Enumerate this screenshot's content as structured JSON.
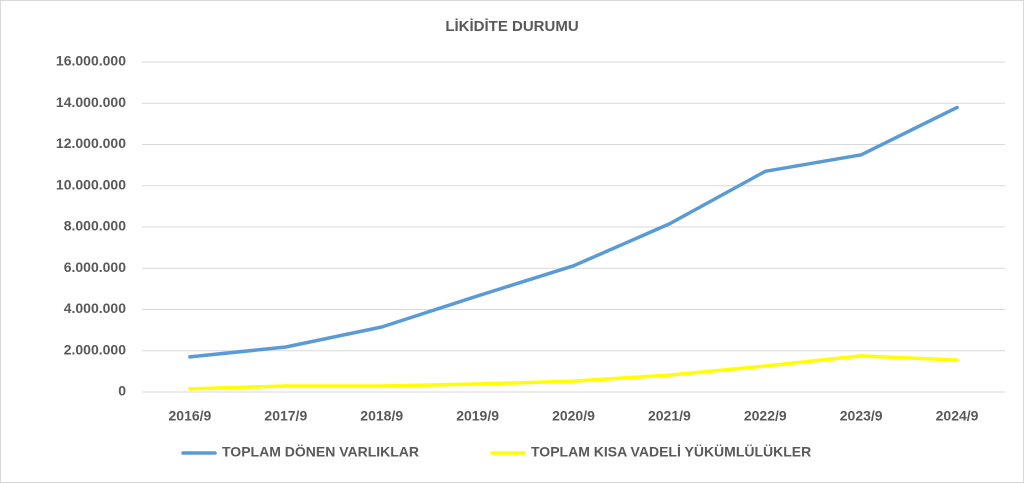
{
  "chart_data": {
    "type": "line",
    "title": "LİKİDİTE DURUMU",
    "categories": [
      "2016/9",
      "2017/9",
      "2018/9",
      "2019/9",
      "2020/9",
      "2021/9",
      "2022/9",
      "2023/9",
      "2024/9"
    ],
    "series": [
      {
        "name": "TOPLAM DÖNEN VARLIKLAR",
        "color": "#5b9bd5",
        "values": [
          1700000,
          2180000,
          3150000,
          4660000,
          6120000,
          8150000,
          10700000,
          11500000,
          13800000
        ]
      },
      {
        "name": "TOPLAM KISA VADELİ YÜKÜMLÜLÜKLER",
        "color": "#ffff00",
        "values": [
          150000,
          290000,
          290000,
          390000,
          530000,
          820000,
          1260000,
          1750000,
          1550000
        ]
      }
    ],
    "ylim": [
      0,
      16000000
    ],
    "yticks": [
      0,
      {
        "value": 2000000,
        "label": "2.000.000"
      },
      {
        "value": 4000000,
        "label": "4.000.000"
      },
      {
        "value": 6000000,
        "label": "6.000.000"
      },
      {
        "value": 8000000,
        "label": "8.000.000"
      },
      {
        "value": 10000000,
        "label": "10.000.000"
      },
      {
        "value": 12000000,
        "label": "12.000.000"
      },
      {
        "value": 14000000,
        "label": "14.000.000"
      },
      {
        "value": 16000000,
        "label": "16.000.000"
      }
    ],
    "grid": true,
    "legend": "bottom"
  }
}
